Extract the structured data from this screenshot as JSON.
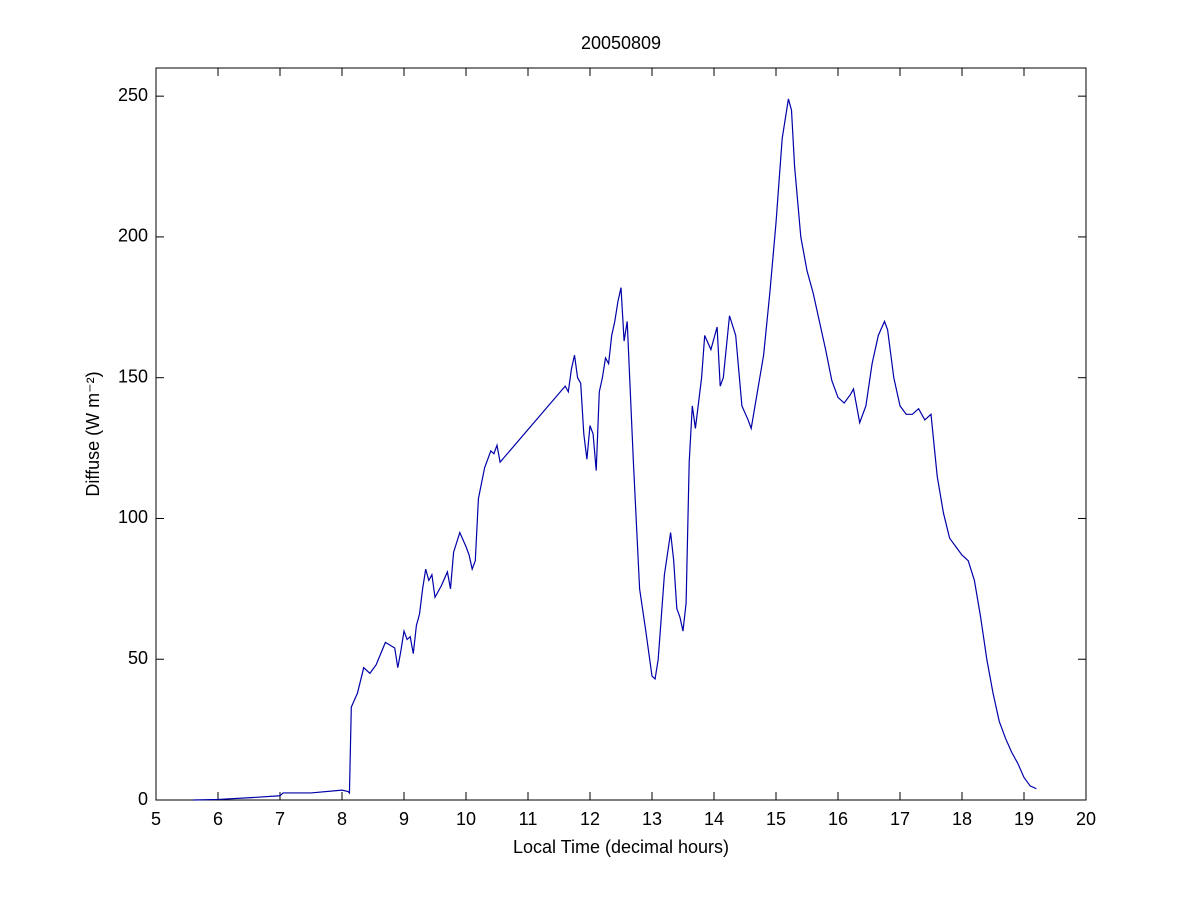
{
  "chart_data": {
    "type": "line",
    "title": "20050809",
    "xlabel": "Local Time (decimal hours)",
    "ylabel": "Diffuse (W m⁻²)",
    "xlim": [
      5,
      20
    ],
    "xticks": [
      5,
      6,
      7,
      8,
      9,
      10,
      11,
      12,
      13,
      14,
      15,
      16,
      17,
      18,
      19,
      20
    ],
    "ylim": [
      0,
      260
    ],
    "yticks": [
      0,
      50,
      100,
      150,
      200,
      250
    ],
    "grid": false,
    "color": "#0000aa",
    "x": [
      5.6,
      6,
      6.5,
      7,
      7.05,
      7.5,
      8,
      8.1,
      8.12,
      8.15,
      8.25,
      8.35,
      8.45,
      8.55,
      8.7,
      8.85,
      8.9,
      8.95,
      9.0,
      9.05,
      9.1,
      9.15,
      9.2,
      9.25,
      9.3,
      9.35,
      9.4,
      9.45,
      9.5,
      9.6,
      9.7,
      9.75,
      9.8,
      9.9,
      10.0,
      10.05,
      10.1,
      10.15,
      10.2,
      10.3,
      10.4,
      10.45,
      10.5,
      10.55,
      11.6,
      11.65,
      11.7,
      11.75,
      11.8,
      11.85,
      11.9,
      11.95,
      12.0,
      12.05,
      12.1,
      12.15,
      12.2,
      12.25,
      12.3,
      12.35,
      12.4,
      12.45,
      12.5,
      12.55,
      12.6,
      12.7,
      12.8,
      12.9,
      13.0,
      13.05,
      13.1,
      13.2,
      13.3,
      13.35,
      13.4,
      13.45,
      13.5,
      13.55,
      13.6,
      13.65,
      13.7,
      13.8,
      13.85,
      13.95,
      14.05,
      14.1,
      14.15,
      14.25,
      14.35,
      14.45,
      14.55,
      14.6,
      14.7,
      14.8,
      14.9,
      15.0,
      15.1,
      15.2,
      15.25,
      15.3,
      15.4,
      15.5,
      15.6,
      15.7,
      15.8,
      15.9,
      16.0,
      16.1,
      16.2,
      16.25,
      16.3,
      16.35,
      16.45,
      16.55,
      16.65,
      16.75,
      16.8,
      16.9,
      17.0,
      17.1,
      17.2,
      17.3,
      17.4,
      17.5,
      17.6,
      17.7,
      17.8,
      17.9,
      18.0,
      18.1,
      18.2,
      18.3,
      18.4,
      18.5,
      18.6,
      18.7,
      18.8,
      18.9,
      19.0,
      19.1,
      19.2
    ],
    "values": [
      0,
      0.2,
      0.8,
      1.5,
      2.5,
      2.5,
      3.5,
      3,
      2.5,
      33,
      38,
      47,
      45,
      48,
      56,
      54,
      47,
      53,
      60,
      57,
      58,
      52,
      62,
      66,
      75,
      82,
      78,
      80,
      72,
      76,
      81,
      75,
      88,
      95,
      90,
      87,
      82,
      85,
      107,
      118,
      124,
      123,
      126,
      120,
      147,
      145,
      153,
      158,
      150,
      148,
      130,
      121,
      133,
      130,
      117,
      145,
      150,
      157,
      155,
      165,
      170,
      177,
      182,
      163,
      170,
      120,
      75,
      60,
      44,
      43,
      50,
      80,
      95,
      85,
      68,
      65,
      60,
      70,
      120,
      140,
      132,
      150,
      165,
      160,
      168,
      147,
      150,
      172,
      165,
      140,
      135,
      132,
      145,
      158,
      180,
      205,
      235,
      249,
      245,
      225,
      200,
      188,
      180,
      170,
      160,
      149,
      143,
      141,
      144,
      146,
      140,
      134,
      140,
      155,
      165,
      170,
      167,
      150,
      140,
      137,
      137,
      139,
      135,
      137,
      115,
      102,
      93,
      90,
      87,
      85,
      78,
      65,
      50,
      38,
      28,
      22,
      17,
      13,
      8,
      5,
      4
    ]
  }
}
